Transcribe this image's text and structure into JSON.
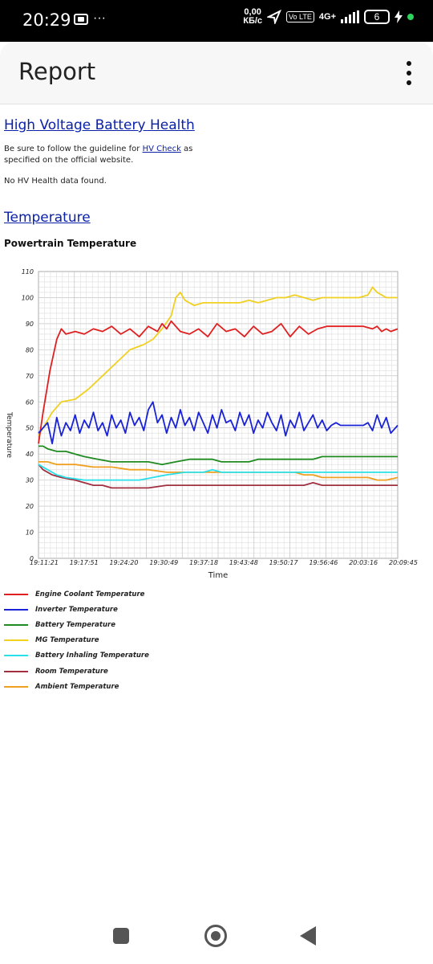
{
  "status_bar": {
    "time": "20:29",
    "more": "···",
    "speed_value": "0,00",
    "speed_unit": "КБ/с",
    "volte": "Vo LTE",
    "network": "4G+",
    "battery": "6"
  },
  "app_bar": {
    "title": "Report"
  },
  "hv_section": {
    "heading": "High Voltage Battery Health",
    "guideline_prefix": "Be sure to follow the guideline for ",
    "guideline_link": "HV Check",
    "guideline_suffix": " as",
    "guideline_line2": "specified on the official website.",
    "no_data": "No HV Health data found."
  },
  "temperature_section": {
    "heading": "Temperature",
    "subheading": "Powertrain Temperature"
  },
  "chart_data": {
    "type": "line",
    "title": "Powertrain Temperature",
    "xlabel": "Time",
    "ylabel": "Temperature",
    "ylim": [
      0,
      110
    ],
    "yticks": [
      0,
      10,
      20,
      30,
      40,
      50,
      60,
      70,
      80,
      90,
      100,
      110
    ],
    "xticks": [
      "19:11:21",
      "19:17:51",
      "19:24:20",
      "19:30:49",
      "19:37:18",
      "19:43:48",
      "19:50:17",
      "19:56:46",
      "20:03:16",
      "20:09:45"
    ],
    "x_unit": "minutes since 19:11:21",
    "grid": true,
    "legend_position": "bottom-left",
    "series": [
      {
        "name": "Engine Coolant Temperature",
        "color": "#e02020",
        "points": [
          [
            0,
            44
          ],
          [
            1,
            56
          ],
          [
            2.5,
            72
          ],
          [
            4,
            84
          ],
          [
            5,
            88
          ],
          [
            6,
            86
          ],
          [
            8,
            87
          ],
          [
            10,
            86
          ],
          [
            12,
            88
          ],
          [
            14,
            87
          ],
          [
            16,
            89
          ],
          [
            18,
            86
          ],
          [
            20,
            88
          ],
          [
            22,
            85
          ],
          [
            24,
            89
          ],
          [
            26,
            87
          ],
          [
            27,
            90
          ],
          [
            28,
            88
          ],
          [
            29,
            91
          ],
          [
            31,
            87
          ],
          [
            33,
            86
          ],
          [
            35,
            88
          ],
          [
            37,
            85
          ],
          [
            39,
            90
          ],
          [
            41,
            87
          ],
          [
            43,
            88
          ],
          [
            45,
            85
          ],
          [
            47,
            89
          ],
          [
            49,
            86
          ],
          [
            51,
            87
          ],
          [
            53,
            90
          ],
          [
            55,
            85
          ],
          [
            56,
            87
          ],
          [
            57,
            89
          ],
          [
            59,
            86
          ],
          [
            61,
            88
          ],
          [
            63,
            89
          ],
          [
            66,
            89
          ],
          [
            69,
            89
          ],
          [
            71,
            89
          ],
          [
            73,
            88
          ],
          [
            74,
            89
          ],
          [
            75,
            87
          ],
          [
            76,
            88
          ],
          [
            77,
            87
          ],
          [
            78.5,
            88
          ]
        ]
      },
      {
        "name": "Inverter Temperature",
        "color": "#1a22d8",
        "points": [
          [
            0,
            48
          ],
          [
            2,
            52
          ],
          [
            3,
            44
          ],
          [
            4,
            54
          ],
          [
            5,
            47
          ],
          [
            6,
            52
          ],
          [
            7,
            49
          ],
          [
            8,
            55
          ],
          [
            9,
            48
          ],
          [
            10,
            53
          ],
          [
            11,
            50
          ],
          [
            12,
            56
          ],
          [
            13,
            49
          ],
          [
            14,
            52
          ],
          [
            15,
            47
          ],
          [
            16,
            55
          ],
          [
            17,
            50
          ],
          [
            18,
            53
          ],
          [
            19,
            48
          ],
          [
            20,
            56
          ],
          [
            21,
            51
          ],
          [
            22,
            54
          ],
          [
            23,
            49
          ],
          [
            24,
            57
          ],
          [
            25,
            60
          ],
          [
            26,
            52
          ],
          [
            27,
            55
          ],
          [
            28,
            48
          ],
          [
            29,
            54
          ],
          [
            30,
            50
          ],
          [
            31,
            57
          ],
          [
            32,
            51
          ],
          [
            33,
            54
          ],
          [
            34,
            49
          ],
          [
            35,
            56
          ],
          [
            36,
            52
          ],
          [
            37,
            48
          ],
          [
            38,
            55
          ],
          [
            39,
            50
          ],
          [
            40,
            57
          ],
          [
            41,
            52
          ],
          [
            42,
            53
          ],
          [
            43,
            49
          ],
          [
            44,
            56
          ],
          [
            45,
            51
          ],
          [
            46,
            55
          ],
          [
            47,
            48
          ],
          [
            48,
            53
          ],
          [
            49,
            50
          ],
          [
            50,
            56
          ],
          [
            51,
            52
          ],
          [
            52,
            49
          ],
          [
            53,
            55
          ],
          [
            54,
            47
          ],
          [
            55,
            53
          ],
          [
            56,
            50
          ],
          [
            57,
            56
          ],
          [
            58,
            49
          ],
          [
            59,
            52
          ],
          [
            60,
            55
          ],
          [
            61,
            50
          ],
          [
            62,
            53
          ],
          [
            63,
            49
          ],
          [
            64,
            51
          ],
          [
            65,
            52
          ],
          [
            66,
            51
          ],
          [
            67,
            51
          ],
          [
            68,
            51
          ],
          [
            69,
            51
          ],
          [
            70,
            51
          ],
          [
            71,
            51
          ],
          [
            72,
            52
          ],
          [
            73,
            49
          ],
          [
            74,
            55
          ],
          [
            75,
            50
          ],
          [
            76,
            54
          ],
          [
            77,
            48
          ],
          [
            78.5,
            51
          ]
        ]
      },
      {
        "name": "Battery Temperature",
        "color": "#1f8a1f",
        "points": [
          [
            0,
            43
          ],
          [
            1,
            43
          ],
          [
            2,
            42
          ],
          [
            4,
            41
          ],
          [
            6,
            41
          ],
          [
            8,
            40
          ],
          [
            10,
            39
          ],
          [
            13,
            38
          ],
          [
            16,
            37
          ],
          [
            20,
            37
          ],
          [
            24,
            37
          ],
          [
            27,
            36
          ],
          [
            30,
            37
          ],
          [
            33,
            38
          ],
          [
            36,
            38
          ],
          [
            38,
            38
          ],
          [
            40,
            37
          ],
          [
            44,
            37
          ],
          [
            46,
            37
          ],
          [
            48,
            38
          ],
          [
            52,
            38
          ],
          [
            56,
            38
          ],
          [
            60,
            38
          ],
          [
            62,
            39
          ],
          [
            66,
            39
          ],
          [
            70,
            39
          ],
          [
            74,
            39
          ],
          [
            78.5,
            39
          ]
        ]
      },
      {
        "name": "MG Temperature",
        "color": "#f0d020",
        "points": [
          [
            0,
            47
          ],
          [
            1,
            50
          ],
          [
            3,
            56
          ],
          [
            5,
            60
          ],
          [
            8,
            61
          ],
          [
            11,
            65
          ],
          [
            14,
            70
          ],
          [
            17,
            75
          ],
          [
            20,
            80
          ],
          [
            23,
            82
          ],
          [
            25,
            84
          ],
          [
            27,
            88
          ],
          [
            29,
            93
          ],
          [
            30,
            100
          ],
          [
            31,
            102
          ],
          [
            32,
            99
          ],
          [
            34,
            97
          ],
          [
            36,
            98
          ],
          [
            40,
            98
          ],
          [
            44,
            98
          ],
          [
            46,
            99
          ],
          [
            48,
            98
          ],
          [
            50,
            99
          ],
          [
            52,
            100
          ],
          [
            54,
            100
          ],
          [
            56,
            101
          ],
          [
            58,
            100
          ],
          [
            60,
            99
          ],
          [
            62,
            100
          ],
          [
            66,
            100
          ],
          [
            70,
            100
          ],
          [
            72,
            101
          ],
          [
            73,
            104
          ],
          [
            74,
            102
          ],
          [
            75,
            101
          ],
          [
            76,
            100
          ],
          [
            78.5,
            100
          ]
        ]
      },
      {
        "name": "Battery Inhaling Temperature",
        "color": "#28e0e8",
        "points": [
          [
            0,
            36
          ],
          [
            2,
            34
          ],
          [
            4,
            32
          ],
          [
            6,
            31
          ],
          [
            10,
            30
          ],
          [
            14,
            30
          ],
          [
            18,
            30
          ],
          [
            22,
            30
          ],
          [
            25,
            31
          ],
          [
            28,
            32
          ],
          [
            32,
            33
          ],
          [
            36,
            33
          ],
          [
            38,
            34
          ],
          [
            40,
            33
          ],
          [
            44,
            33
          ],
          [
            48,
            33
          ],
          [
            52,
            33
          ],
          [
            56,
            33
          ],
          [
            60,
            33
          ],
          [
            64,
            33
          ],
          [
            66,
            33
          ],
          [
            68,
            33
          ],
          [
            70,
            33
          ],
          [
            72,
            33
          ],
          [
            74,
            33
          ],
          [
            76,
            33
          ],
          [
            78.5,
            33
          ]
        ]
      },
      {
        "name": "Room Temperature",
        "color": "#a03040",
        "points": [
          [
            0,
            36
          ],
          [
            1,
            34
          ],
          [
            3,
            32
          ],
          [
            5,
            31
          ],
          [
            8,
            30
          ],
          [
            10,
            29
          ],
          [
            12,
            28
          ],
          [
            14,
            28
          ],
          [
            16,
            27
          ],
          [
            20,
            27
          ],
          [
            24,
            27
          ],
          [
            28,
            28
          ],
          [
            32,
            28
          ],
          [
            36,
            28
          ],
          [
            40,
            28
          ],
          [
            44,
            28
          ],
          [
            48,
            28
          ],
          [
            52,
            28
          ],
          [
            56,
            28
          ],
          [
            58,
            28
          ],
          [
            60,
            29
          ],
          [
            62,
            28
          ],
          [
            66,
            28
          ],
          [
            70,
            28
          ],
          [
            74,
            28
          ],
          [
            78.5,
            28
          ]
        ]
      },
      {
        "name": "Ambient Temperature",
        "color": "#f0a020",
        "points": [
          [
            0,
            37
          ],
          [
            2,
            37
          ],
          [
            4,
            36
          ],
          [
            8,
            36
          ],
          [
            12,
            35
          ],
          [
            16,
            35
          ],
          [
            20,
            34
          ],
          [
            24,
            34
          ],
          [
            28,
            33
          ],
          [
            32,
            33
          ],
          [
            36,
            33
          ],
          [
            40,
            33
          ],
          [
            44,
            33
          ],
          [
            48,
            33
          ],
          [
            52,
            33
          ],
          [
            56,
            33
          ],
          [
            58,
            32
          ],
          [
            60,
            32
          ],
          [
            62,
            31
          ],
          [
            66,
            31
          ],
          [
            70,
            31
          ],
          [
            72,
            31
          ],
          [
            74,
            30
          ],
          [
            76,
            30
          ],
          [
            78.5,
            31
          ]
        ]
      }
    ]
  },
  "icons": {
    "cast": "cast-icon",
    "location": "navigation-arrow-icon",
    "menu": "more-vert-icon",
    "recents": "square-icon",
    "home": "home-circle-icon",
    "back": "back-triangle-icon"
  }
}
